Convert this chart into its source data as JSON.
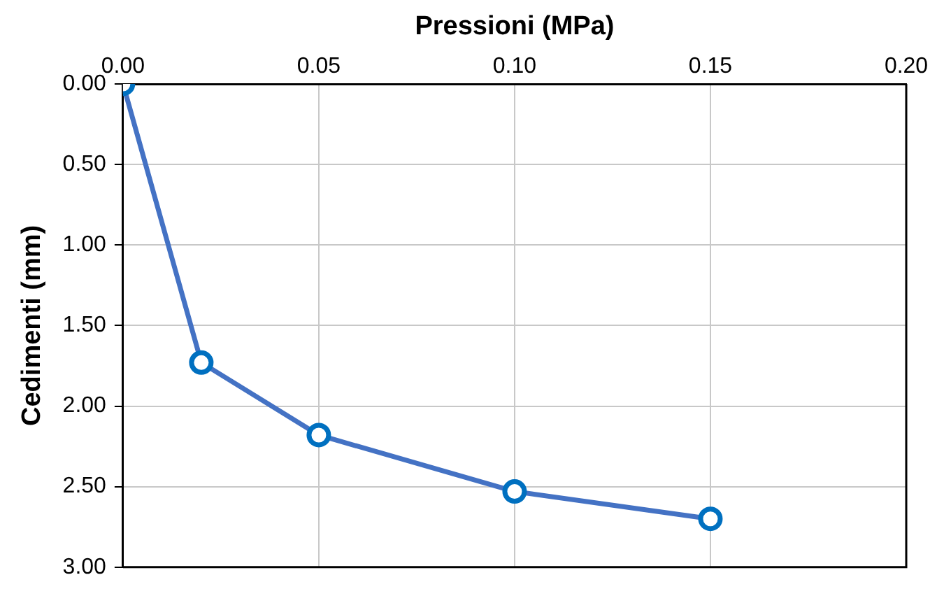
{
  "chart_data": {
    "type": "line",
    "xlabel": "Pressioni (MPa)",
    "ylabel": "Cedimenti (mm)",
    "x": [
      0,
      0.02,
      0.05,
      0.1,
      0.15
    ],
    "series": [
      {
        "color": "#4472c4",
        "values": [
          0,
          1.73,
          2.18,
          2.53,
          2.7
        ]
      }
    ],
    "xlim": [
      0,
      0.2
    ],
    "xticks": [
      {
        "value": 0,
        "label": "0.00"
      },
      {
        "value": 0.05,
        "label": "0.05"
      },
      {
        "value": 0.1,
        "label": "0.10"
      },
      {
        "value": 0.15,
        "label": "0.15"
      },
      {
        "value": 0.2,
        "label": "0.20"
      }
    ],
    "ylim": [
      3,
      0
    ],
    "yticks": [
      {
        "value": 0,
        "label": "0.00"
      },
      {
        "value": 0.5,
        "label": "0.50"
      },
      {
        "value": 1,
        "label": "1.00"
      },
      {
        "value": 1.5,
        "label": "1.50"
      },
      {
        "value": 2,
        "label": "2.00"
      },
      {
        "value": 2.5,
        "label": "2.50"
      },
      {
        "value": 3,
        "label": "3.00"
      }
    ],
    "grid": true,
    "legend": false,
    "marker": "circle",
    "line_style": "solid"
  }
}
